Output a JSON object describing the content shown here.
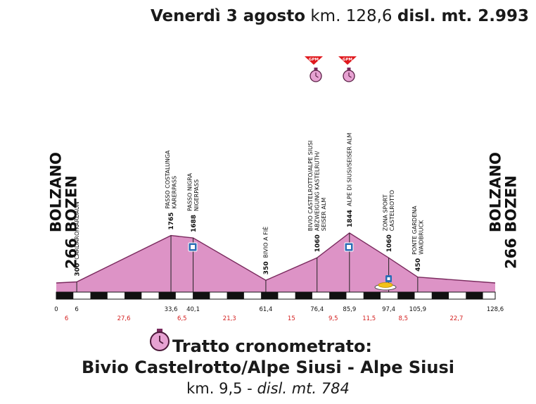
{
  "header": {
    "day": "Venerdì 3 agosto",
    "km": "km. 128,6",
    "disl": "disl. mt. 2.993"
  },
  "gpm_label": "GPM",
  "profile": {
    "points": [
      {
        "km": 0,
        "alt": 266
      },
      {
        "km": 6,
        "alt": 300
      },
      {
        "km": 33.6,
        "alt": 1765
      },
      {
        "km": 40.1,
        "alt": 1688
      },
      {
        "km": 61.4,
        "alt": 350
      },
      {
        "km": 76.4,
        "alt": 1060
      },
      {
        "km": 85.9,
        "alt": 1844
      },
      {
        "km": 97.4,
        "alt": 1060
      },
      {
        "km": 105.9,
        "alt": 450
      },
      {
        "km": 128.6,
        "alt": 266
      }
    ],
    "km_ticks": [
      "0",
      "6",
      "33,6",
      "40,1",
      "61,4",
      "76,4",
      "85,9",
      "97,4",
      "105,9",
      "128,6"
    ],
    "segments": [
      "6",
      "27,6",
      "6,5",
      "21,3",
      "15",
      "9,5",
      "11,5",
      "8,5",
      "22,7"
    ]
  },
  "places": [
    {
      "alt": "266",
      "name": "BOLZANO\nBOZEN",
      "style": "big",
      "km": 0
    },
    {
      "alt": "300",
      "name": "CARDARO/KARDAUN",
      "style": "small",
      "km": 6
    },
    {
      "alt": "1765",
      "name": "PASSO COSTALUNGA\nKARERPASS",
      "style": "small",
      "km": 33.6
    },
    {
      "alt": "1688",
      "name": "PASSO NIGRA\nNIGERPASS",
      "style": "small",
      "km": 40.1
    },
    {
      "alt": "350",
      "name": "BIVIO A FIÈ",
      "style": "small",
      "km": 61.4
    },
    {
      "alt": "1060",
      "name": "BIVIO CASTELROTTO/ALPE SIUSI\nABZWEIGUNG KASTELRUTH/\nSEISER ALM",
      "style": "small",
      "km": 76.4
    },
    {
      "alt": "1844",
      "name": "ALPE DI SIUSI/SEISER ALM",
      "style": "small",
      "km": 85.9
    },
    {
      "alt": "1060",
      "name": "ZONA SPORT\nCASTELROTTO",
      "style": "small",
      "km": 97.4
    },
    {
      "alt": "450",
      "name": "PONTE GARDENA\nWAIDBRUCK",
      "style": "small",
      "km": 105.9
    },
    {
      "alt": "266",
      "name": "BOLZANO\nBOZEN",
      "style": "big",
      "km": 128.6
    }
  ],
  "footer": {
    "title": "Tratto cronometrato:",
    "subtitle": "Bivio Castelrotto/Alpe Siusi - Alpe Siusi",
    "km": "km. 9,5 - ",
    "disl": "disl. mt. 784"
  },
  "colors": {
    "profile_fill": "#dd93c6",
    "profile_stroke": "#7a2a5e",
    "gpm_red": "#e0191e",
    "chrono_pink": "#e7a2d2",
    "seg_red": "#d42020",
    "sprint_blue": "#2b6db5",
    "food_yellow": "#f2c218"
  },
  "icons": [
    "gpm-flag-icon",
    "chrono-stopwatch-icon",
    "sprint-bonus-icon",
    "feed-zone-icon"
  ]
}
